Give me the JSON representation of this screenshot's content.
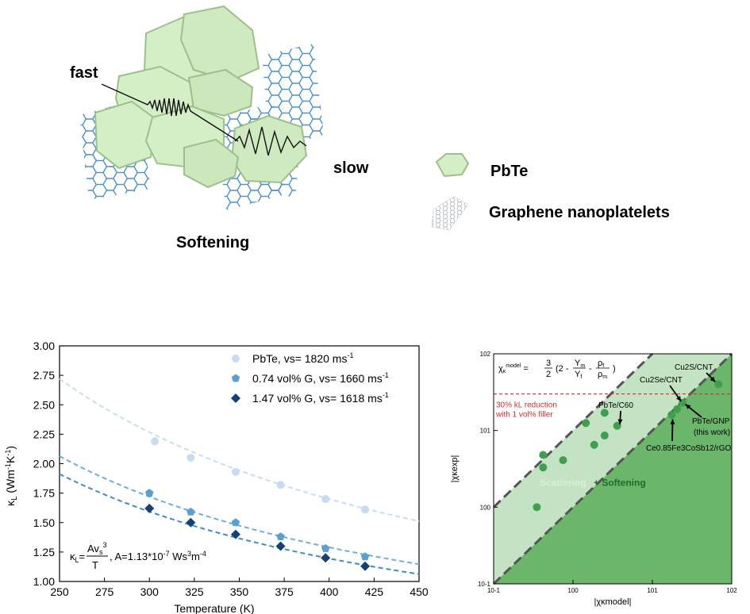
{
  "schematic": {
    "label_fast": "fast",
    "label_slow": "slow",
    "caption": "Softening",
    "legend": [
      {
        "label": "PbTe",
        "icon": "pbte-hexagon-icon"
      },
      {
        "label": "Graphene nanoplatelets",
        "icon": "graphene-sheet-icon"
      }
    ],
    "colors": {
      "pbte": "#d4efc6",
      "pbte_edge": "#9cbf8c",
      "graphene": "#4a90c8"
    }
  },
  "chart_data": [
    {
      "type": "scatter",
      "xlabel": "Temperature (K)",
      "ylabel": "κL (Wm-1K-1)",
      "xlim": [
        250,
        450
      ],
      "ylim": [
        1.0,
        3.0
      ],
      "x_ticks": [
        250,
        275,
        300,
        325,
        350,
        375,
        400,
        425,
        450
      ],
      "y_ticks": [
        "1.00",
        "1.25",
        "1.50",
        "1.75",
        "2.00",
        "2.25",
        "2.50",
        "2.75",
        "3.00"
      ],
      "legend_position": "top-right",
      "annotation": "κL = Avs³/T, A=1.13*10-7 Ws³m-4",
      "series": [
        {
          "name": "PbTe, vs= 1820 ms-1",
          "marker": "circle",
          "color": "#c6dcf2",
          "fit_color": "#c9ddee",
          "x": [
            303,
            323,
            348,
            373,
            398,
            420
          ],
          "y": [
            2.19,
            2.05,
            1.93,
            1.82,
            1.7,
            1.61
          ]
        },
        {
          "name": "0.74 vol% G, vs= 1660 ms-1",
          "marker": "pentagon",
          "color": "#5a9fd0",
          "fit_color": "#6faed8",
          "x": [
            300,
            323,
            348,
            373,
            398,
            420
          ],
          "y": [
            1.75,
            1.59,
            1.5,
            1.38,
            1.28,
            1.21
          ]
        },
        {
          "name": "1.47 vol% G, vs= 1618 ms-1",
          "marker": "diamond",
          "color": "#1a3f72",
          "fit_color": "#3b8fc4",
          "x": [
            300,
            323,
            348,
            373,
            398,
            420
          ],
          "y": [
            1.62,
            1.5,
            1.4,
            1.3,
            1.2,
            1.13
          ]
        }
      ],
      "fit_curves": [
        {
          "series": 0,
          "k": 680
        },
        {
          "series": 1,
          "k": 516
        },
        {
          "series": 2,
          "k": 478
        }
      ]
    },
    {
      "type": "scatter",
      "xlabel": "|χκmodel|",
      "ylabel": "|χκexp|",
      "xscale": "log",
      "yscale": "log",
      "xlim": [
        0.1,
        100
      ],
      "ylim": [
        0.1,
        100
      ],
      "x_ticks": [
        "10-1",
        "100",
        "101",
        "102"
      ],
      "y_ticks": [
        "10-1",
        "100",
        "101",
        "102"
      ],
      "formula": "χκmodel = 3/2 (2 - Ym/Yf - ρf/ρm)",
      "threshold_label_1": "30% kL reduction",
      "threshold_label_2": "with 1 vol% filler",
      "threshold_y": 30,
      "region_label_1": "Scattering",
      "region_label_2": "+ Softening",
      "colors": {
        "light_band": "#c4e3c4",
        "dark_region": "#6bb66b",
        "points": "#3f9f4f",
        "threshold": "#d32f2f"
      },
      "points": {
        "x": [
          0.35,
          0.42,
          0.42,
          0.75,
          1.45,
          1.85,
          2.5,
          2.5,
          3.6,
          17.5,
          20.5,
          24,
          68
        ],
        "y": [
          1.0,
          3.3,
          4.8,
          4.1,
          12.5,
          6.5,
          8.6,
          17,
          11.5,
          16,
          19,
          23,
          40
        ]
      },
      "annotations": [
        {
          "label": "Cu2S/CNT"
        },
        {
          "label": "Cu2Se/CNT"
        },
        {
          "label": "PbTe/C60"
        },
        {
          "label": "PbTe/GNP"
        },
        {
          "label": "(this work)"
        },
        {
          "label": "Ce0.85Fe3CoSb12/rGO"
        }
      ]
    }
  ]
}
